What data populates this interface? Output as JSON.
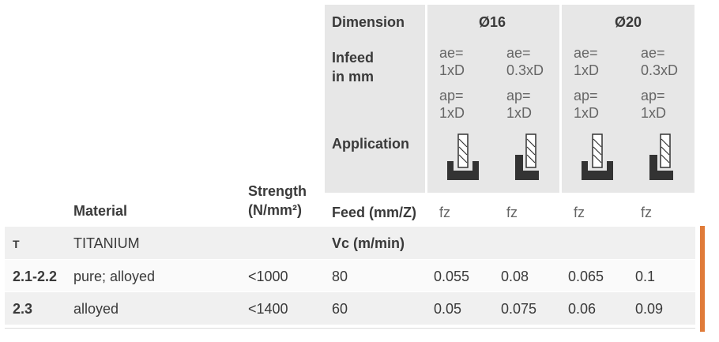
{
  "header": {
    "dimension_label": "Dimension",
    "dia1": "Ø16",
    "dia2": "Ø20",
    "infeed_label_line1": "Infeed",
    "infeed_label_line2": "in mm",
    "ae": [
      [
        "ae=",
        "1xD"
      ],
      [
        "ae=",
        "0.3xD"
      ],
      [
        "ae=",
        "1xD"
      ],
      [
        "ae=",
        "0.3xD"
      ]
    ],
    "ap": [
      [
        "ap=",
        "1xD"
      ],
      [
        "ap=",
        "1xD"
      ],
      [
        "ap=",
        "1xD"
      ],
      [
        "ap=",
        "1xD"
      ]
    ],
    "application_label": "Application",
    "strength_line1": "Strength",
    "strength_line2": "(N/mm²)",
    "material_label": "Material",
    "feed_label": "Feed (mm/Z)",
    "fz": [
      "fz",
      "fz",
      "fz",
      "fz"
    ]
  },
  "group": {
    "code": "T",
    "name": "TITANIUM",
    "vc_label": "Vc (m/min)"
  },
  "rows": [
    {
      "code": "2.1-2.2",
      "material": "pure; alloyed",
      "strength": "<1000",
      "vc": "80",
      "f1": "0.055",
      "f2": "0.08",
      "f3": "0.065",
      "f4": "0.1"
    },
    {
      "code": "2.3",
      "material": "alloyed",
      "strength": "<1400",
      "vc": "60",
      "f1": "0.05",
      "f2": "0.075",
      "f3": "0.06",
      "f4": "0.09"
    }
  ],
  "colors": {
    "accent": "#e07b39",
    "header_bg": "#e7e7e7"
  },
  "icons": [
    "slot-milling-icon",
    "side-milling-icon",
    "slot-milling-icon",
    "side-milling-icon"
  ]
}
